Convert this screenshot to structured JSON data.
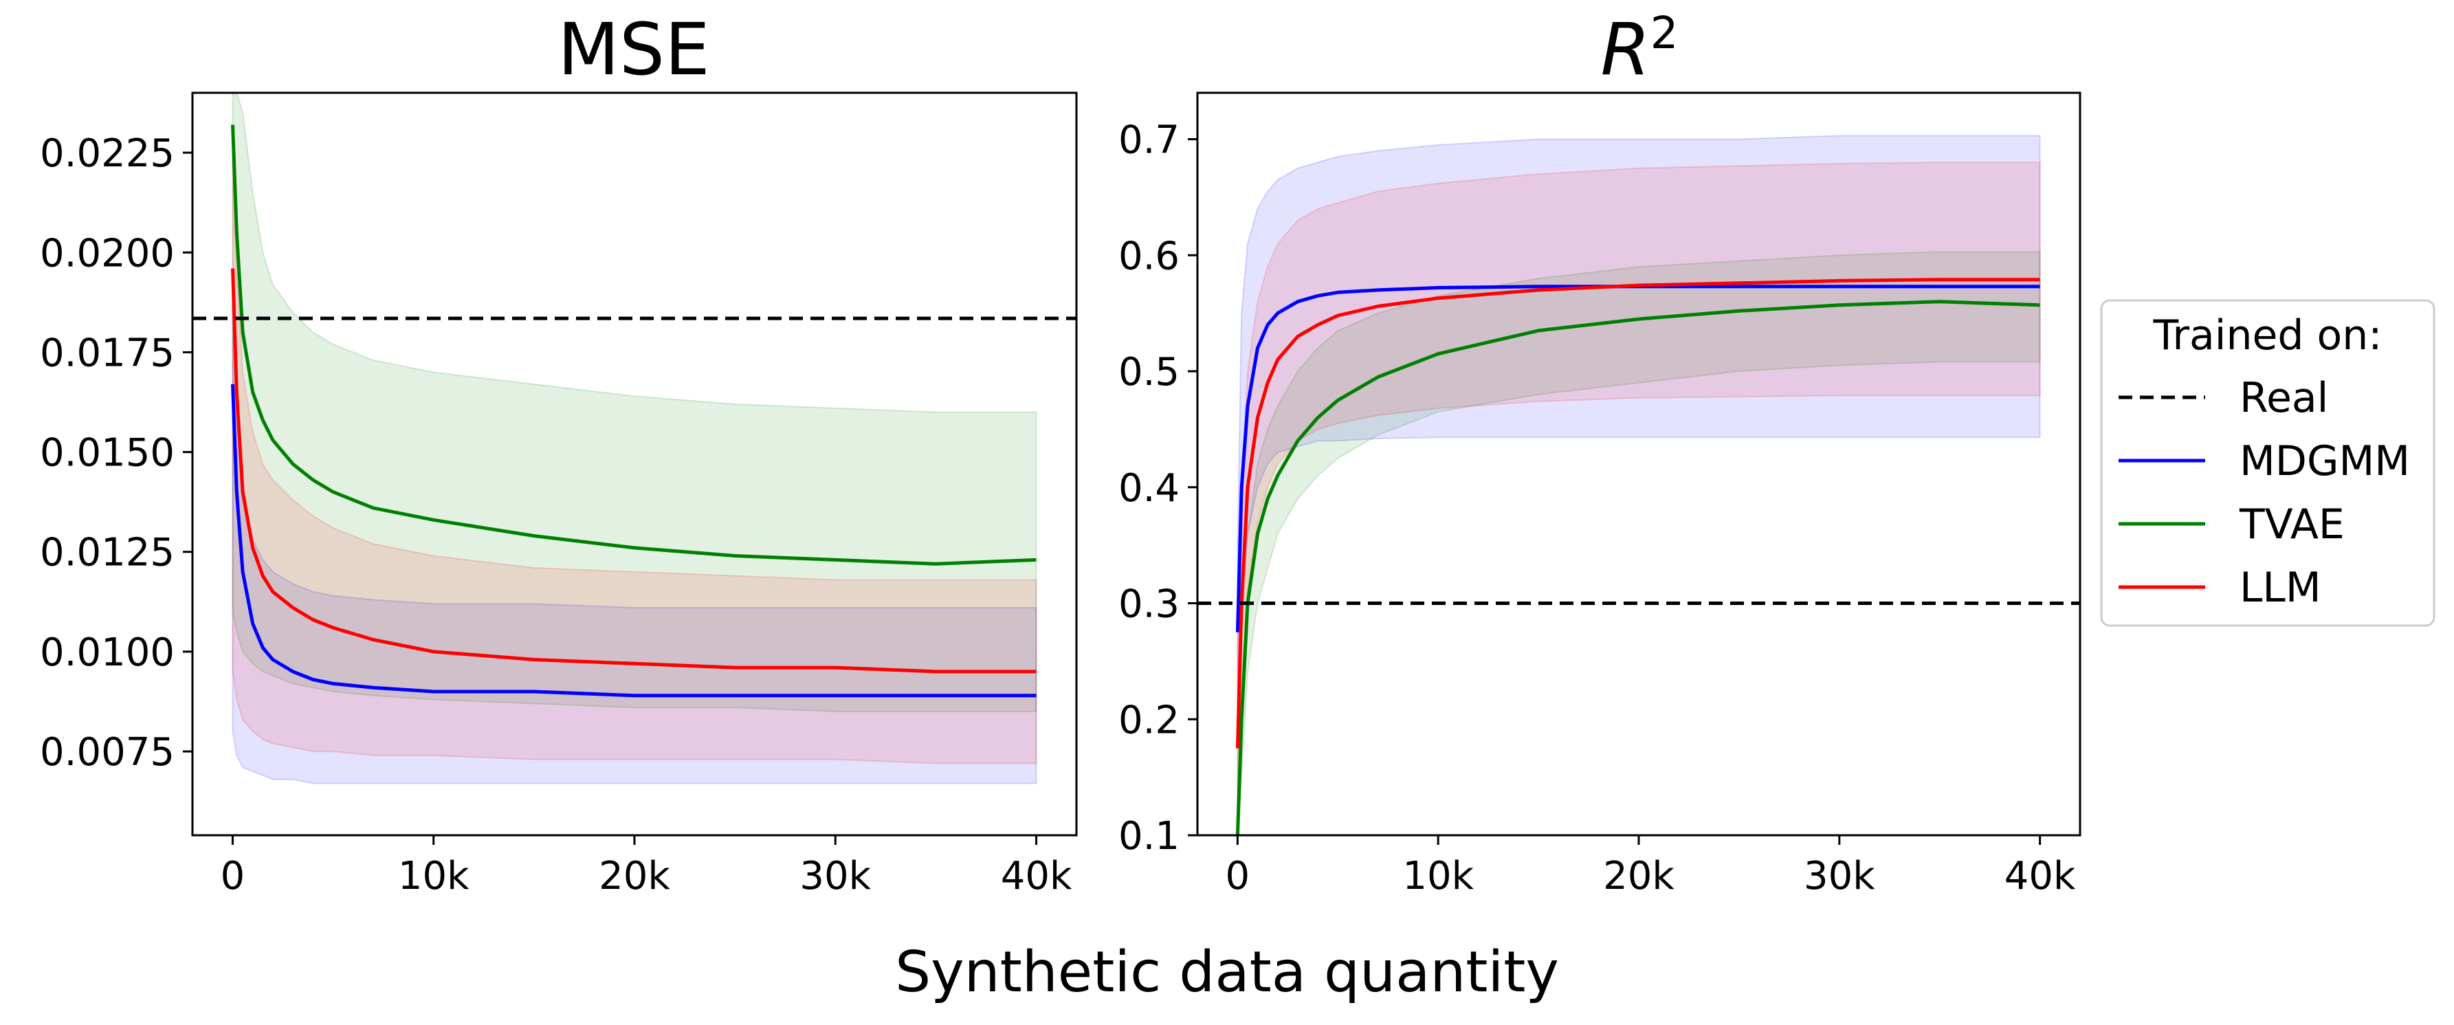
{
  "figure": {
    "xlabel": "Synthetic data quantity"
  },
  "legend": {
    "title": "Trained on:",
    "placement": "right",
    "entries": [
      {
        "label": "Real",
        "color": "#000000",
        "style": "dashed"
      },
      {
        "label": "MDGMM",
        "color": "#0000ff",
        "style": "solid"
      },
      {
        "label": "TVAE",
        "color": "#008000",
        "style": "solid"
      },
      {
        "label": "LLM",
        "color": "#ff0000",
        "style": "solid"
      }
    ]
  },
  "chart_data": [
    {
      "type": "line",
      "title": "MSE",
      "xlim": [
        -2000,
        42000
      ],
      "ylim": [
        0.0054,
        0.024
      ],
      "x_ticks": [
        0,
        10000,
        20000,
        30000,
        40000
      ],
      "x_tick_labels": [
        "0",
        "10k",
        "20k",
        "30k",
        "40k"
      ],
      "y_ticks": [
        0.0075,
        0.01,
        0.0125,
        0.015,
        0.0175,
        0.02,
        0.0225
      ],
      "y_tick_labels": [
        "0.0075",
        "0.0100",
        "0.0125",
        "0.0150",
        "0.0175",
        "0.0200",
        "0.0225"
      ],
      "grid": false,
      "reference_line": {
        "name": "Real",
        "y": 0.01835
      },
      "series": [
        {
          "name": "MDGMM",
          "color": "#0000ff",
          "x": [
            0,
            200,
            500,
            1000,
            1500,
            2000,
            3000,
            4000,
            5000,
            7000,
            10000,
            15000,
            20000,
            25000,
            30000,
            35000,
            40000
          ],
          "y": [
            0.0167,
            0.014,
            0.012,
            0.0107,
            0.0101,
            0.0098,
            0.0095,
            0.0093,
            0.0092,
            0.0091,
            0.009,
            0.009,
            0.0089,
            0.0089,
            0.0089,
            0.0089,
            0.0089
          ],
          "lower": [
            0.008,
            0.0074,
            0.0071,
            0.007,
            0.0069,
            0.0068,
            0.0068,
            0.0067,
            0.0067,
            0.0067,
            0.0067,
            0.0067,
            0.0067,
            0.0067,
            0.0067,
            0.0067,
            0.0067
          ],
          "upper": [
            0.019,
            0.016,
            0.014,
            0.0128,
            0.0123,
            0.012,
            0.0117,
            0.0115,
            0.0114,
            0.0113,
            0.0112,
            0.0112,
            0.0111,
            0.0111,
            0.0111,
            0.0111,
            0.0111
          ]
        },
        {
          "name": "TVAE",
          "color": "#008000",
          "x": [
            0,
            200,
            500,
            1000,
            1500,
            2000,
            3000,
            4000,
            5000,
            7000,
            10000,
            15000,
            20000,
            25000,
            30000,
            35000,
            40000
          ],
          "y": [
            0.0232,
            0.0205,
            0.018,
            0.0165,
            0.0158,
            0.0153,
            0.0147,
            0.0143,
            0.014,
            0.0136,
            0.0133,
            0.0129,
            0.0126,
            0.0124,
            0.0123,
            0.0122,
            0.0123
          ],
          "lower": [
            0.011,
            0.0105,
            0.01,
            0.0097,
            0.0095,
            0.0094,
            0.0092,
            0.0091,
            0.009,
            0.0089,
            0.0088,
            0.0087,
            0.0086,
            0.0086,
            0.0085,
            0.0085,
            0.0085
          ],
          "upper": [
            0.024,
            0.024,
            0.0235,
            0.0215,
            0.02,
            0.0192,
            0.0185,
            0.018,
            0.0177,
            0.0173,
            0.017,
            0.0167,
            0.0164,
            0.0162,
            0.0161,
            0.016,
            0.016
          ]
        },
        {
          "name": "LLM",
          "color": "#ff0000",
          "x": [
            0,
            200,
            500,
            1000,
            1500,
            2000,
            3000,
            4000,
            5000,
            7000,
            10000,
            15000,
            20000,
            25000,
            30000,
            35000,
            40000
          ],
          "y": [
            0.0196,
            0.0165,
            0.014,
            0.0126,
            0.0119,
            0.0115,
            0.0111,
            0.0108,
            0.0106,
            0.0103,
            0.01,
            0.0098,
            0.0097,
            0.0096,
            0.0096,
            0.0095,
            0.0095
          ],
          "lower": [
            0.0095,
            0.0088,
            0.0083,
            0.008,
            0.0078,
            0.0077,
            0.0076,
            0.0075,
            0.0075,
            0.0074,
            0.0074,
            0.0073,
            0.0073,
            0.0073,
            0.0073,
            0.0072,
            0.0072
          ],
          "upper": [
            0.0225,
            0.0195,
            0.017,
            0.0155,
            0.0147,
            0.0143,
            0.0138,
            0.0134,
            0.0131,
            0.0127,
            0.0124,
            0.0121,
            0.012,
            0.0119,
            0.0118,
            0.0118,
            0.0118
          ]
        }
      ]
    },
    {
      "type": "line",
      "title": "R²",
      "xlim": [
        -2000,
        42000
      ],
      "ylim": [
        0.1,
        0.74
      ],
      "x_ticks": [
        0,
        10000,
        20000,
        30000,
        40000
      ],
      "x_tick_labels": [
        "0",
        "10k",
        "20k",
        "30k",
        "40k"
      ],
      "y_ticks": [
        0.1,
        0.2,
        0.3,
        0.4,
        0.5,
        0.6,
        0.7
      ],
      "y_tick_labels": [
        "0.1",
        "0.2",
        "0.3",
        "0.4",
        "0.5",
        "0.6",
        "0.7"
      ],
      "grid": false,
      "reference_line": {
        "name": "Real",
        "y": 0.3
      },
      "series": [
        {
          "name": "MDGMM",
          "color": "#0000ff",
          "x": [
            0,
            200,
            500,
            1000,
            1500,
            2000,
            3000,
            4000,
            5000,
            7000,
            10000,
            15000,
            20000,
            25000,
            30000,
            35000,
            40000
          ],
          "y": [
            0.275,
            0.4,
            0.47,
            0.52,
            0.54,
            0.55,
            0.56,
            0.565,
            0.568,
            0.57,
            0.572,
            0.573,
            0.573,
            0.573,
            0.573,
            0.573,
            0.573
          ],
          "lower": [
            0.2,
            0.3,
            0.36,
            0.4,
            0.42,
            0.43,
            0.435,
            0.44,
            0.44,
            0.442,
            0.443,
            0.443,
            0.443,
            0.443,
            0.443,
            0.443,
            0.443
          ],
          "upper": [
            0.35,
            0.55,
            0.61,
            0.64,
            0.655,
            0.665,
            0.675,
            0.68,
            0.685,
            0.69,
            0.695,
            0.7,
            0.7,
            0.7,
            0.703,
            0.703,
            0.703
          ]
        },
        {
          "name": "TVAE",
          "color": "#008000",
          "x": [
            0,
            200,
            500,
            1000,
            1500,
            2000,
            3000,
            4000,
            5000,
            7000,
            10000,
            15000,
            20000,
            25000,
            30000,
            35000,
            40000
          ],
          "y": [
            0.1,
            0.2,
            0.3,
            0.36,
            0.39,
            0.41,
            0.44,
            0.46,
            0.475,
            0.495,
            0.515,
            0.535,
            0.545,
            0.552,
            0.557,
            0.56,
            0.557
          ],
          "lower": [
            0.05,
            0.15,
            0.24,
            0.3,
            0.33,
            0.36,
            0.39,
            0.41,
            0.425,
            0.445,
            0.465,
            0.48,
            0.49,
            0.5,
            0.505,
            0.508,
            0.508
          ],
          "upper": [
            0.18,
            0.28,
            0.36,
            0.42,
            0.45,
            0.47,
            0.5,
            0.52,
            0.535,
            0.55,
            0.565,
            0.58,
            0.59,
            0.595,
            0.6,
            0.603,
            0.603
          ]
        },
        {
          "name": "LLM",
          "color": "#ff0000",
          "x": [
            0,
            200,
            500,
            1000,
            1500,
            2000,
            3000,
            4000,
            5000,
            7000,
            10000,
            15000,
            20000,
            25000,
            30000,
            35000,
            40000
          ],
          "y": [
            0.175,
            0.3,
            0.4,
            0.46,
            0.49,
            0.51,
            0.53,
            0.54,
            0.548,
            0.556,
            0.563,
            0.57,
            0.574,
            0.576,
            0.578,
            0.579,
            0.579
          ],
          "lower": [
            0.12,
            0.22,
            0.31,
            0.37,
            0.4,
            0.42,
            0.44,
            0.45,
            0.455,
            0.462,
            0.468,
            0.474,
            0.477,
            0.478,
            0.479,
            0.479,
            0.479
          ],
          "upper": [
            0.26,
            0.4,
            0.5,
            0.56,
            0.59,
            0.61,
            0.63,
            0.64,
            0.645,
            0.655,
            0.662,
            0.67,
            0.675,
            0.677,
            0.679,
            0.68,
            0.68
          ]
        }
      ]
    }
  ]
}
